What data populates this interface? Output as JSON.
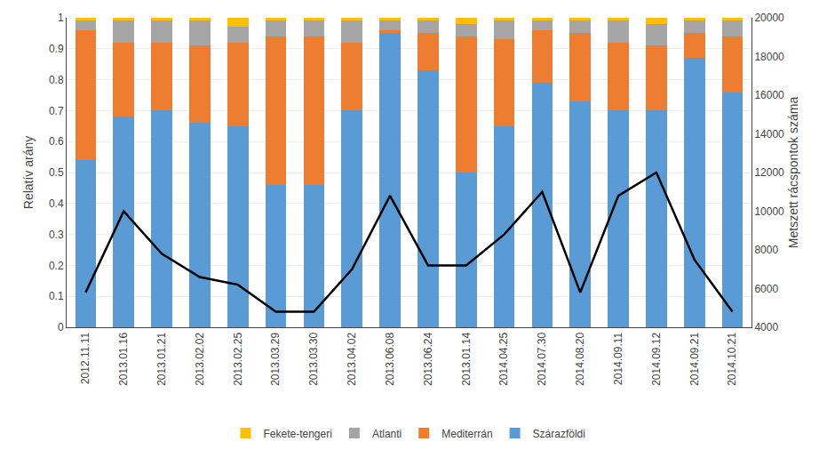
{
  "chart_data": {
    "type": "bar",
    "stacked": true,
    "categories": [
      "2012.11.11",
      "2013.01.16",
      "2013.01.21",
      "2013.02.02",
      "2013.02.25",
      "2013.03.29",
      "2013.03.30",
      "2013.04.02",
      "2013.06.08",
      "2013.06.24",
      "2013.01.14",
      "2014.04.25",
      "2014.07.30",
      "2014.08.20",
      "2014.09.11",
      "2014.09.12",
      "2014.09.21",
      "2014.10.21"
    ],
    "series": [
      {
        "name": "Szárazföldi",
        "color": "#5b9bd5",
        "values": [
          0.54,
          0.68,
          0.7,
          0.66,
          0.65,
          0.46,
          0.46,
          0.7,
          0.95,
          0.83,
          0.5,
          0.65,
          0.79,
          0.73,
          0.7,
          0.7,
          0.87,
          0.76
        ]
      },
      {
        "name": "Mediterrán",
        "color": "#ed7d31",
        "values": [
          0.42,
          0.24,
          0.22,
          0.25,
          0.27,
          0.48,
          0.48,
          0.22,
          0.01,
          0.12,
          0.44,
          0.28,
          0.17,
          0.22,
          0.22,
          0.21,
          0.08,
          0.18
        ]
      },
      {
        "name": "Atlanti",
        "color": "#a5a5a5",
        "values": [
          0.03,
          0.07,
          0.07,
          0.08,
          0.05,
          0.05,
          0.05,
          0.07,
          0.03,
          0.04,
          0.04,
          0.06,
          0.03,
          0.04,
          0.07,
          0.07,
          0.04,
          0.05
        ]
      },
      {
        "name": "Fekete-tengeri",
        "color": "#ffc000",
        "values": [
          0.01,
          0.01,
          0.01,
          0.01,
          0.03,
          0.01,
          0.01,
          0.01,
          0.01,
          0.01,
          0.02,
          0.01,
          0.01,
          0.01,
          0.01,
          0.02,
          0.01,
          0.01
        ]
      },
      {
        "type": "line",
        "axis": "y2",
        "color": "#000000",
        "values": [
          5800,
          10000,
          7800,
          6600,
          6200,
          4800,
          4800,
          7000,
          10800,
          7200,
          7200,
          8800,
          11000,
          5800,
          10800,
          12000,
          7500,
          4800
        ]
      }
    ],
    "ylabel": "Relatív arány",
    "y2label": "Metszett rácspontok száma",
    "ylim": [
      0,
      1.0
    ],
    "yticks": [
      0,
      0.1,
      0.2,
      0.3,
      0.4,
      0.5,
      0.6,
      0.7,
      0.8,
      0.9,
      1
    ],
    "y2lim": [
      4000,
      20000
    ],
    "y2ticks": [
      4000,
      6000,
      8000,
      10000,
      12000,
      14000,
      16000,
      18000,
      20000
    ],
    "grid": true,
    "legend": "bottom"
  }
}
